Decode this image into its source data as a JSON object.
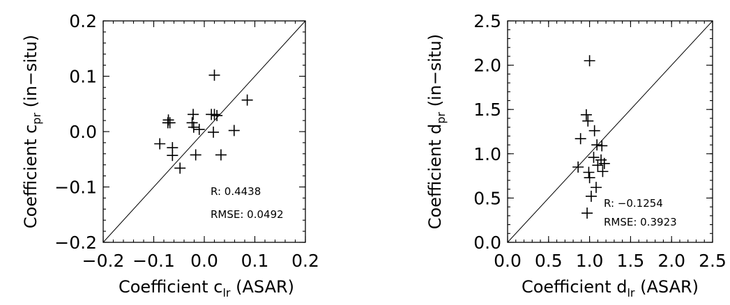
{
  "chart_data": [
    {
      "type": "scatter",
      "xlabel": {
        "prefix": "Coefficient c",
        "sub": "lr",
        "suffix": " (ASAR)"
      },
      "ylabel": {
        "prefix": "Coefficient c",
        "sub": "pr",
        "suffix": " (in−situ)"
      },
      "xlim": [
        -0.2,
        0.2
      ],
      "ylim": [
        -0.2,
        0.2
      ],
      "xticks": [
        -0.2,
        -0.1,
        0.0,
        0.1,
        0.2
      ],
      "xtick_labels": [
        "−0.2",
        "−0.1",
        "0.0",
        "0.1",
        "0.2"
      ],
      "yticks": [
        -0.2,
        -0.1,
        0.0,
        0.1,
        0.2
      ],
      "ytick_labels": [
        "−0.2",
        "−0.1",
        "0.0",
        "0.1",
        "0.2"
      ],
      "reference_line": "y = x",
      "stats": [
        "R: 0.4438",
        "RMSE: 0.0492"
      ],
      "grid": false,
      "points": [
        {
          "x": 0.02,
          "y": 0.102
        },
        {
          "x": 0.085,
          "y": 0.057
        },
        {
          "x": -0.071,
          "y": 0.021
        },
        {
          "x": -0.072,
          "y": 0.016
        },
        {
          "x": -0.068,
          "y": 0.016
        },
        {
          "x": -0.022,
          "y": 0.031
        },
        {
          "x": -0.024,
          "y": 0.016
        },
        {
          "x": -0.021,
          "y": 0.008
        },
        {
          "x": -0.01,
          "y": 0.004
        },
        {
          "x": 0.014,
          "y": 0.031
        },
        {
          "x": 0.02,
          "y": 0.031
        },
        {
          "x": 0.025,
          "y": 0.029
        },
        {
          "x": 0.018,
          "y": -0.001
        },
        {
          "x": 0.059,
          "y": 0.002
        },
        {
          "x": -0.088,
          "y": -0.022
        },
        {
          "x": -0.063,
          "y": -0.029
        },
        {
          "x": -0.063,
          "y": -0.043
        },
        {
          "x": -0.017,
          "y": -0.042
        },
        {
          "x": 0.033,
          "y": -0.042
        },
        {
          "x": -0.048,
          "y": -0.066
        }
      ]
    },
    {
      "type": "scatter",
      "xlabel": {
        "prefix": "Coefficient d",
        "sub": "lr",
        "suffix": " (ASAR)"
      },
      "ylabel": {
        "prefix": "Coefficient d",
        "sub": "pr",
        "suffix": " (in−situ)"
      },
      "xlim": [
        0.0,
        2.5
      ],
      "ylim": [
        0.0,
        2.5
      ],
      "xticks": [
        0.0,
        0.5,
        1.0,
        1.5,
        2.0,
        2.5
      ],
      "xtick_labels": [
        "0.0",
        "0.5",
        "1.0",
        "1.5",
        "2.0",
        "2.5"
      ],
      "yticks": [
        0.0,
        0.5,
        1.0,
        1.5,
        2.0,
        2.5
      ],
      "ytick_labels": [
        "0.0",
        "0.5",
        "1.0",
        "1.5",
        "2.0",
        "2.5"
      ],
      "reference_line": "y = x",
      "stats": [
        "R: −0.1254",
        "RMSE: 0.3923"
      ],
      "grid": false,
      "points": [
        {
          "x": 1.0,
          "y": 2.05
        },
        {
          "x": 0.96,
          "y": 1.44
        },
        {
          "x": 0.98,
          "y": 1.37
        },
        {
          "x": 1.06,
          "y": 1.26
        },
        {
          "x": 0.89,
          "y": 1.17
        },
        {
          "x": 1.09,
          "y": 1.1
        },
        {
          "x": 1.15,
          "y": 1.09
        },
        {
          "x": 1.05,
          "y": 0.96
        },
        {
          "x": 1.14,
          "y": 0.93
        },
        {
          "x": 1.18,
          "y": 0.89
        },
        {
          "x": 1.1,
          "y": 0.87
        },
        {
          "x": 0.86,
          "y": 0.85
        },
        {
          "x": 1.16,
          "y": 0.8
        },
        {
          "x": 0.99,
          "y": 0.79
        },
        {
          "x": 1.0,
          "y": 0.73
        },
        {
          "x": 1.08,
          "y": 0.62
        },
        {
          "x": 1.02,
          "y": 0.52
        },
        {
          "x": 0.97,
          "y": 0.33
        }
      ]
    }
  ]
}
